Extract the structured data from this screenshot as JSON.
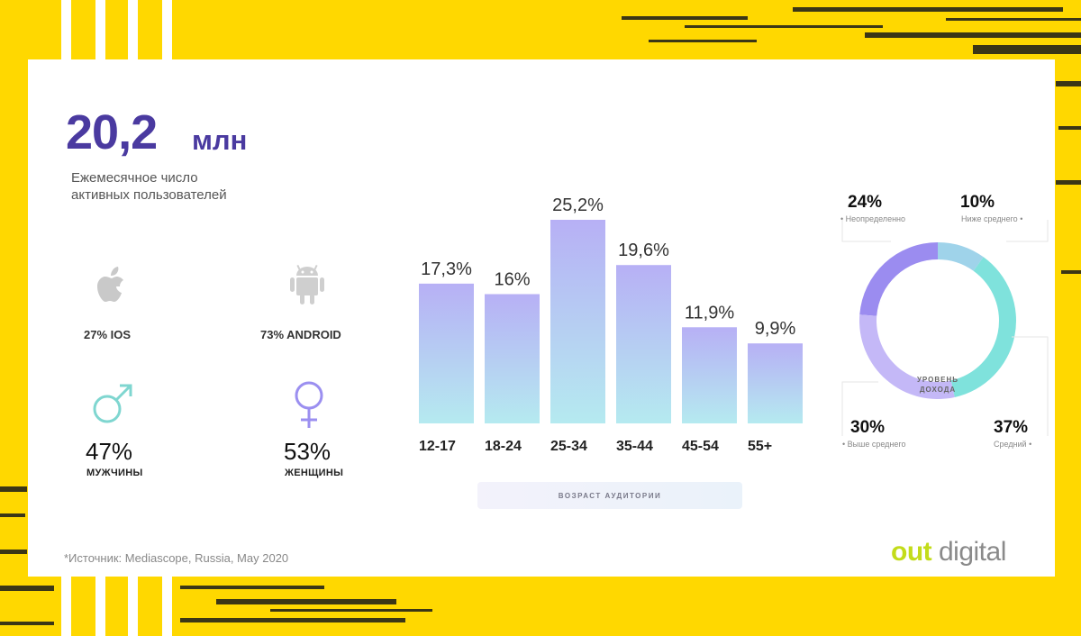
{
  "colors": {
    "background": "#FFD800",
    "accent": "#4a3aa0",
    "bar_top": "#b7b0f5",
    "bar_bottom": "#b5eaf0"
  },
  "headline": {
    "value": "20,2",
    "unit": "млн",
    "description": "Ежемесячное число активных пользователей"
  },
  "platforms": [
    {
      "icon": "apple-icon",
      "label": "27% IOS"
    },
    {
      "icon": "android-icon",
      "label": "73% ANDROID"
    }
  ],
  "gender": [
    {
      "icon": "male-symbol-icon",
      "percent": "47%",
      "label": "МУЖЧИНЫ"
    },
    {
      "icon": "female-symbol-icon",
      "percent": "53%",
      "label": "ЖЕНЩИНЫ"
    }
  ],
  "chart_data": [
    {
      "type": "bar",
      "categories": [
        "12-17",
        "18-24",
        "25-34",
        "35-44",
        "45-54",
        "55+"
      ],
      "values": [
        17.3,
        16,
        25.2,
        19.6,
        11.9,
        9.9
      ],
      "value_labels": [
        "17,3%",
        "16%",
        "25,2%",
        "19,6%",
        "11,9%",
        "9,9%"
      ],
      "xlabel": "ВОЗРАСТ АУДИТОРИИ",
      "ylim": [
        0,
        26
      ]
    },
    {
      "type": "pie",
      "title": "УРОВЕНЬ ДОХОДА",
      "slices": [
        {
          "label": "Неопределенно",
          "value": 24,
          "pct": "24%",
          "color": "#9b8cf0"
        },
        {
          "label": "Ниже среднего",
          "value": 10,
          "pct": "10%",
          "color": "#9fd3ea"
        },
        {
          "label": "Средний",
          "value": 37,
          "pct": "37%",
          "color": "#7fe2dc"
        },
        {
          "label": "Выше среднего",
          "value": 30,
          "pct": "30%",
          "color": "#c4b8f7"
        }
      ]
    }
  ],
  "footer": {
    "source": "*Источник: Mediascope, Russia, May 2020",
    "logo_a": "out",
    "logo_b": " digital"
  }
}
